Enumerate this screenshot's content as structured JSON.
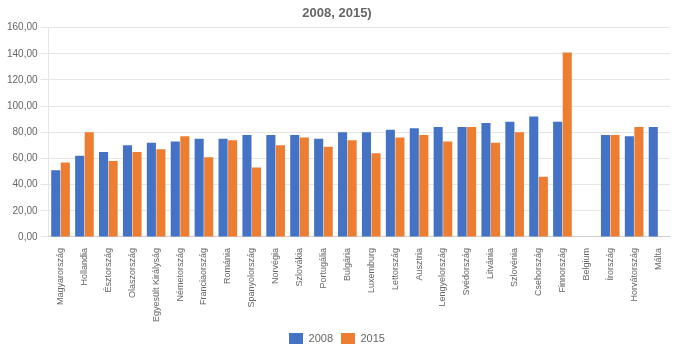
{
  "chart_data": {
    "type": "bar",
    "title": "2008, 2015)",
    "categories": [
      "Magyarország",
      "Hollandia",
      "Észtország",
      "Olaszország",
      "Egyesült Királyság",
      "Németország",
      "Franciaország",
      "Románia",
      "Spanyolország",
      "Norvégia",
      "Szlovákia",
      "Portugália",
      "Bulgária",
      "Luxemburg",
      "Lettország",
      "Ausztria",
      "Lengyelország",
      "Svédország",
      "Litvánia",
      "Szlovénia",
      "Csehország",
      "Finnország",
      "Belgium",
      "Írország",
      "Horvátország",
      "Málta"
    ],
    "series": [
      {
        "name": "2008",
        "color": "#4472C4",
        "values": [
          51,
          62,
          65,
          70,
          72,
          73,
          75,
          75,
          78,
          78,
          78,
          75,
          80,
          80,
          82,
          83,
          84,
          84,
          87,
          88,
          92,
          88,
          0,
          78,
          77,
          84
        ]
      },
      {
        "name": "2015",
        "color": "#ED7D31",
        "values": [
          57,
          80,
          58,
          65,
          67,
          77,
          61,
          74,
          53,
          70,
          76,
          69,
          74,
          64,
          76,
          78,
          73,
          84,
          72,
          80,
          46,
          141,
          0,
          78,
          84,
          0
        ]
      }
    ],
    "ylim": [
      0,
      160
    ],
    "yticks": [
      {
        "value": 0,
        "label": "0,00"
      },
      {
        "value": 20,
        "label": "20,00"
      },
      {
        "value": 40,
        "label": "40,00"
      },
      {
        "value": 60,
        "label": "60,00"
      },
      {
        "value": 80,
        "label": "80,00"
      },
      {
        "value": 100,
        "label": "100,00"
      },
      {
        "value": 120,
        "label": "120,00"
      },
      {
        "value": 140,
        "label": "140,00"
      },
      {
        "value": 160,
        "label": "160,00"
      }
    ],
    "grid": true,
    "legend": "bottom"
  }
}
